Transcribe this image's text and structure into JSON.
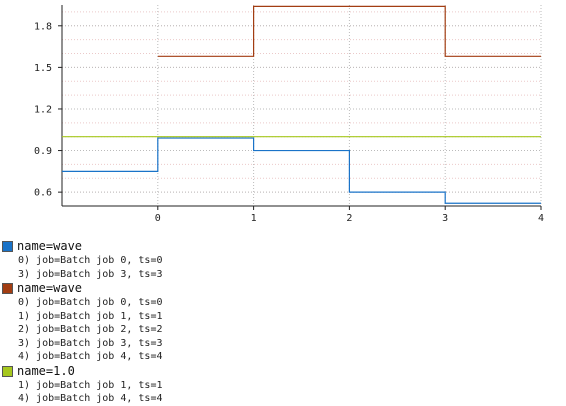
{
  "colors": {
    "series0": "#1a73c8",
    "series1": "#a23d12",
    "series2": "#a6c81e",
    "grid_major": "#bbbbbb",
    "grid_minor": "#ebc9c9",
    "axis": "#222222"
  },
  "chart_data": {
    "type": "line",
    "step": "post",
    "xlim": [
      -1,
      4
    ],
    "ylim": [
      0.5,
      1.95
    ],
    "xticks": [
      0,
      1,
      2,
      3,
      4
    ],
    "xtick_labels": [
      "0",
      "1",
      "2",
      "3",
      "4"
    ],
    "yticks": [
      0.6,
      0.9,
      1.2,
      1.5,
      1.8
    ],
    "ytick_labels": [
      "0.6",
      "0.9",
      "1.2",
      "1.5",
      "1.8"
    ],
    "grid": true,
    "legend_position": "bottom",
    "series": [
      {
        "name": "name=wave",
        "x": [
          -1,
          0,
          1,
          2,
          3,
          4
        ],
        "y": [
          0.75,
          0.99,
          0.9,
          0.6,
          0.52,
          0.52
        ],
        "items": [
          "0) job=Batch job 0, ts=0",
          "3) job=Batch job 3, ts=3"
        ]
      },
      {
        "name": "name=wave",
        "x": [
          0,
          1,
          2,
          3,
          4
        ],
        "y": [
          1.58,
          1.94,
          1.94,
          1.58,
          1.58
        ],
        "items": [
          "0) job=Batch job 0, ts=0",
          "1) job=Batch job 1, ts=1",
          "2) job=Batch job 2, ts=2",
          "3) job=Batch job 3, ts=3",
          "4) job=Batch job 4, ts=4"
        ]
      },
      {
        "name": "name=1.0",
        "x": [
          -1,
          4
        ],
        "y": [
          1.0,
          1.0
        ],
        "items": [
          "1) job=Batch job 1, ts=1",
          "4) job=Batch job 4, ts=4"
        ]
      }
    ]
  }
}
